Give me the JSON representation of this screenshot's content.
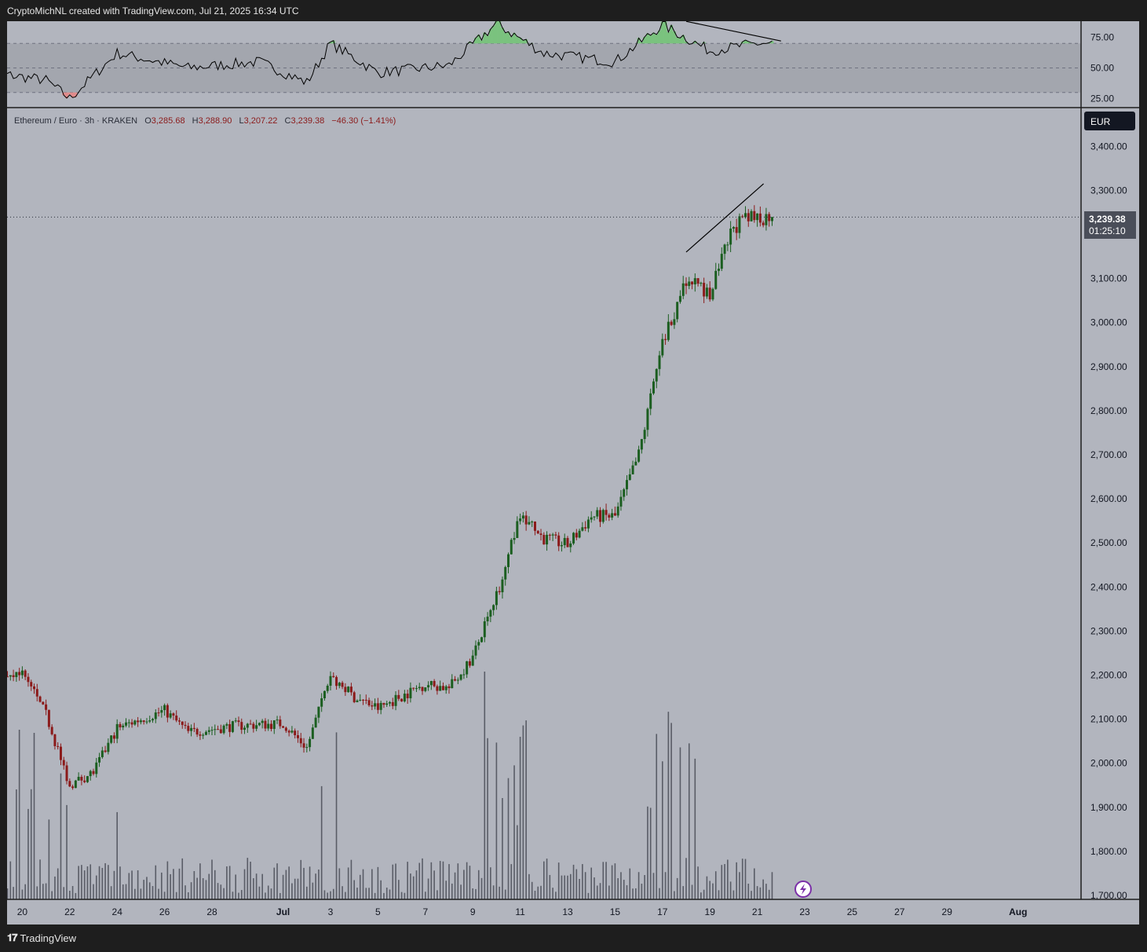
{
  "header": {
    "attribution": "CryptoMichNL created with TradingView.com, Jul 21, 2025 16:34 UTC"
  },
  "footer": {
    "brand": "TradingView",
    "logo_icon": "tradingview-logo-icon"
  },
  "colors": {
    "background": "#b2b5be",
    "frame": "#1e1e1e",
    "up": "#1b5e20",
    "down": "#8b1a1a",
    "volume": "#595c66",
    "rsi_line": "#000000",
    "rsi_band": "#a3a6ae",
    "rsi_overbought_fill": "#7ac27e",
    "rsi_oversold_fill": "#e08b8b",
    "currency_badge": "#131722"
  },
  "legend": {
    "symbol": "Ethereum / Euro · 3h · KRAKEN",
    "open_label": "O",
    "open": "3,285.68",
    "high_label": "H",
    "high": "3,288.90",
    "low_label": "L",
    "low": "3,207.22",
    "close_label": "C",
    "close": "3,239.38",
    "change": "−46.30 (−1.41%)"
  },
  "price_badge": {
    "price": "3,239.38",
    "countdown": "01:25:10"
  },
  "currency": "EUR",
  "indicator_icon": "lightning-icon",
  "chart_data": [
    {
      "type": "candlestick",
      "series": "Ethereum / Euro · 3h · KRAKEN",
      "y_ticks": [
        "3,400.00",
        "3,300.00",
        "3,200.00",
        "3,100.00",
        "3,000.00",
        "2,900.00",
        "2,800.00",
        "2,700.00",
        "2,600.00",
        "2,500.00",
        "2,400.00",
        "2,300.00",
        "2,200.00",
        "2,100.00",
        "2,000.00",
        "1,900.00",
        "1,800.00",
        "1,700.00"
      ],
      "ylim": [
        1700,
        3500
      ],
      "x_ticks": [
        "20",
        "22",
        "24",
        "26",
        "28",
        "Jul",
        "3",
        "5",
        "7",
        "9",
        "11",
        "13",
        "15",
        "17",
        "19",
        "21",
        "23",
        "25",
        "27",
        "29",
        "Aug"
      ],
      "x_range_days": [
        "2025-06-18",
        "2025-08-02"
      ],
      "last_price": 3239.38,
      "key_closes": [
        {
          "date": "2025-06-18",
          "close": 2195
        },
        {
          "date": "2025-06-20",
          "close": 2205
        },
        {
          "date": "2025-06-21",
          "close": 2110
        },
        {
          "date": "2025-06-22",
          "close": 1950
        },
        {
          "date": "2025-06-23",
          "close": 1980
        },
        {
          "date": "2025-06-24",
          "close": 2080
        },
        {
          "date": "2025-06-25",
          "close": 2100
        },
        {
          "date": "2025-06-26",
          "close": 2120
        },
        {
          "date": "2025-06-27",
          "close": 2070
        },
        {
          "date": "2025-06-29",
          "close": 2085
        },
        {
          "date": "2025-07-01",
          "close": 2090
        },
        {
          "date": "2025-07-02",
          "close": 2035
        },
        {
          "date": "2025-07-03",
          "close": 2200
        },
        {
          "date": "2025-07-04",
          "close": 2150
        },
        {
          "date": "2025-07-05",
          "close": 2125
        },
        {
          "date": "2025-07-07",
          "close": 2180
        },
        {
          "date": "2025-07-08",
          "close": 2170
        },
        {
          "date": "2025-07-09",
          "close": 2240
        },
        {
          "date": "2025-07-10",
          "close": 2380
        },
        {
          "date": "2025-07-11",
          "close": 2560
        },
        {
          "date": "2025-07-12",
          "close": 2510
        },
        {
          "date": "2025-07-13",
          "close": 2495
        },
        {
          "date": "2025-07-14",
          "close": 2560
        },
        {
          "date": "2025-07-15",
          "close": 2560
        },
        {
          "date": "2025-07-16",
          "close": 2700
        },
        {
          "date": "2025-07-17",
          "close": 2950
        },
        {
          "date": "2025-07-18",
          "close": 3100
        },
        {
          "date": "2025-07-19",
          "close": 3060
        },
        {
          "date": "2025-07-20",
          "close": 3220
        },
        {
          "date": "2025-07-21",
          "close": 3239.38
        }
      ],
      "trendline": {
        "from": {
          "date": "2025-07-18",
          "price": 3160
        },
        "to": {
          "date": "2025-07-21",
          "price": 3315
        }
      }
    },
    {
      "type": "volume",
      "series": "Volume",
      "peak_dates": [
        "2025-06-20",
        "2025-07-03",
        "2025-07-10",
        "2025-07-11",
        "2025-07-17",
        "2025-07-18"
      ]
    },
    {
      "type": "line",
      "series": "RSI",
      "y_ticks": [
        "75.00",
        "50.00",
        "25.00"
      ],
      "ylim": [
        20,
        100
      ],
      "levels": [
        70,
        50,
        30
      ],
      "key_values": [
        {
          "date": "2025-06-18",
          "value": 48
        },
        {
          "date": "2025-06-21",
          "value": 40
        },
        {
          "date": "2025-06-22",
          "value": 25
        },
        {
          "date": "2025-06-24",
          "value": 62
        },
        {
          "date": "2025-06-27",
          "value": 50
        },
        {
          "date": "2025-06-30",
          "value": 55
        },
        {
          "date": "2025-07-02",
          "value": 38
        },
        {
          "date": "2025-07-03",
          "value": 70
        },
        {
          "date": "2025-07-05",
          "value": 46
        },
        {
          "date": "2025-07-08",
          "value": 52
        },
        {
          "date": "2025-07-10",
          "value": 86
        },
        {
          "date": "2025-07-12",
          "value": 62
        },
        {
          "date": "2025-07-15",
          "value": 55
        },
        {
          "date": "2025-07-17",
          "value": 85
        },
        {
          "date": "2025-07-19",
          "value": 64
        },
        {
          "date": "2025-07-21",
          "value": 70
        }
      ],
      "trendline": {
        "from": {
          "date": "2025-07-18",
          "value": 88
        },
        "to": {
          "date": "2025-07-22",
          "value": 72
        }
      }
    }
  ]
}
